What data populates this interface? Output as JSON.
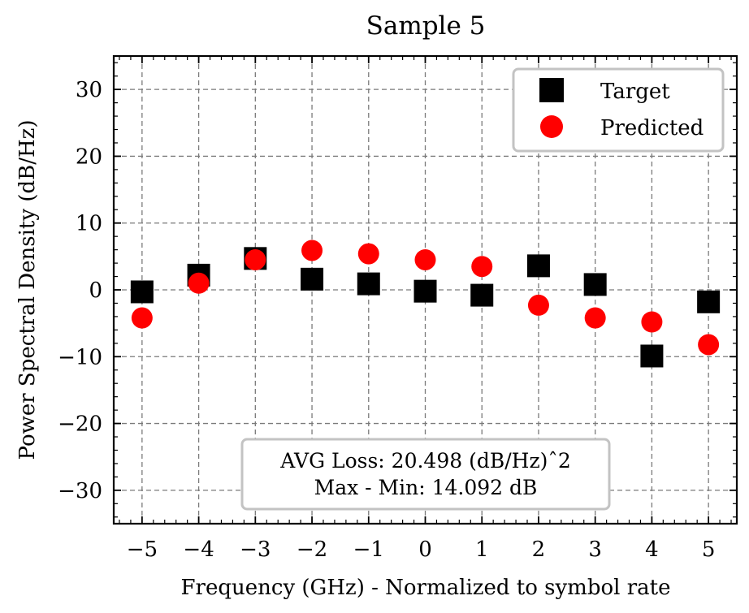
{
  "chart_data": {
    "type": "scatter",
    "title": "Sample 5",
    "xlabel": "Frequency (GHz) - Normalized to symbol rate",
    "ylabel": "Power Spectral Density (dB/Hz)",
    "xlim": [
      -5.5,
      5.5
    ],
    "ylim": [
      -35,
      35
    ],
    "xticks": [
      -5,
      -4,
      -3,
      -2,
      -1,
      0,
      1,
      2,
      3,
      4,
      5
    ],
    "xtick_labels": [
      "−5",
      "−4",
      "−3",
      "−2",
      "−1",
      "0",
      "1",
      "2",
      "3",
      "4",
      "5"
    ],
    "yticks": [
      30,
      20,
      10,
      0,
      -10,
      -20,
      -30
    ],
    "ytick_labels": [
      "30",
      "20",
      "10",
      "0",
      "−10",
      "−20",
      "−30"
    ],
    "grid": true,
    "legend_position": "top-right",
    "x": [
      -5,
      -4,
      -3,
      -2,
      -1,
      0,
      1,
      2,
      3,
      4,
      5
    ],
    "series": [
      {
        "name": "Target",
        "marker": "square",
        "color": "#000000",
        "values": [
          -0.3,
          2.2,
          4.7,
          1.6,
          0.9,
          -0.2,
          -0.8,
          3.6,
          0.8,
          -9.9,
          -1.8
        ]
      },
      {
        "name": "Predicted",
        "marker": "circle",
        "color": "#ff0000",
        "values": [
          -4.2,
          1.0,
          4.5,
          5.9,
          5.4,
          4.5,
          3.5,
          -2.3,
          -4.2,
          -4.8,
          -8.2
        ]
      }
    ],
    "annotation": {
      "line1": "AVG Loss: 20.498 (dB/Hz)ˆ2",
      "line2": "Max - Min: 14.092 dB"
    }
  }
}
